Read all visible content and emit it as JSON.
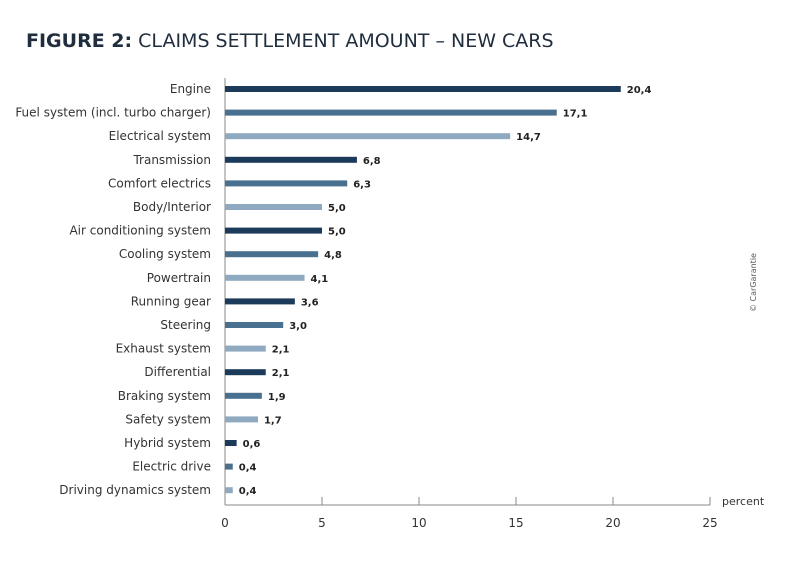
{
  "header": {
    "title_prefix": "FIGURE 2:",
    "title_text": " CLAIMS SETTLEMENT AMOUNT – NEW CARS"
  },
  "credit": "© CarGarantie",
  "colors": {
    "dark": "#1c3a5a",
    "mid": "#49708f",
    "light": "#8fa9c0",
    "axis": "#8a8a8a",
    "text": "#333333"
  },
  "chart_data": {
    "type": "bar",
    "orientation": "horizontal",
    "title": "CLAIMS SETTLEMENT AMOUNT – NEW CARS",
    "xlabel": "percent",
    "xlim": [
      0,
      25
    ],
    "xticks": [
      0,
      5,
      10,
      15,
      20,
      25
    ],
    "grid": false,
    "categories": [
      "Engine",
      "Fuel system (incl. turbo charger)",
      "Electrical system",
      "Transmission",
      "Comfort electrics",
      "Body/Interior",
      "Air conditioning system",
      "Cooling system",
      "Powertrain",
      "Running gear",
      "Steering",
      "Exhaust system",
      "Differential",
      "Braking system",
      "Safety system",
      "Hybrid system",
      "Electric drive",
      "Driving dynamics system"
    ],
    "values": [
      20.4,
      17.1,
      14.7,
      6.8,
      6.3,
      5.0,
      5.0,
      4.8,
      4.1,
      3.6,
      3.0,
      2.1,
      2.1,
      1.9,
      1.7,
      0.6,
      0.4,
      0.4
    ],
    "value_labels": [
      "20,4",
      "17,1",
      "14,7",
      "6,8",
      "6,3",
      "5,0",
      "5,0",
      "4,8",
      "4,1",
      "3,6",
      "3,0",
      "2,1",
      "2,1",
      "1,9",
      "1,7",
      "0,6",
      "0,4",
      "0,4"
    ],
    "color_pattern": [
      "dark",
      "mid",
      "light"
    ]
  }
}
